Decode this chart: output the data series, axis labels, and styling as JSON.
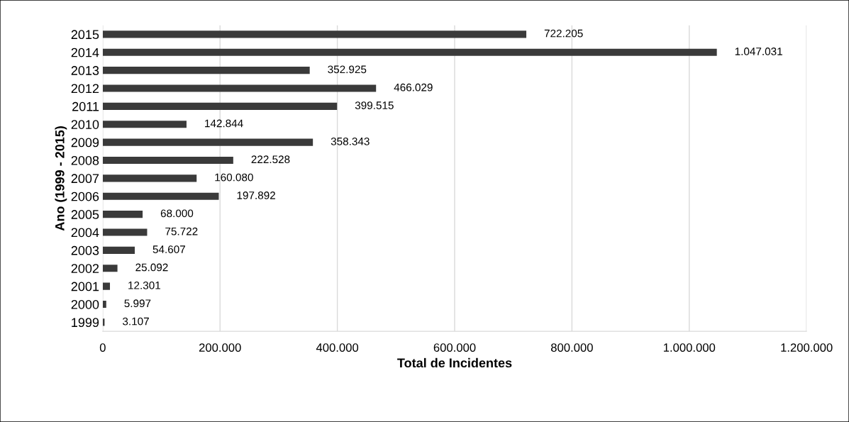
{
  "chart_data": {
    "type": "bar",
    "orientation": "horizontal",
    "xlabel": "Total de Incidentes",
    "ylabel": "Ano (1999 - 2015)",
    "categories": [
      "2015",
      "2014",
      "2013",
      "2012",
      "2011",
      "2010",
      "2009",
      "2008",
      "2007",
      "2006",
      "2005",
      "2004",
      "2003",
      "2002",
      "2001",
      "2000",
      "1999"
    ],
    "values": [
      722205,
      1047031,
      352925,
      466029,
      399515,
      142844,
      358343,
      222528,
      160080,
      197892,
      68000,
      75722,
      54607,
      25092,
      12301,
      5997,
      3107
    ],
    "value_labels": [
      "722.205",
      "1.047.031",
      "352.925",
      "466.029",
      "399.515",
      "142.844",
      "358.343",
      "222.528",
      "160.080",
      "197.892",
      "68.000",
      "75.722",
      "54.607",
      "25.092",
      "12.301",
      "5.997",
      "3.107"
    ],
    "color": "#3a3a3a",
    "xlim": [
      0,
      1200000
    ],
    "xticks": [
      0,
      {
        "value": 200000,
        "label": "200.000"
      },
      {
        "value": 400000,
        "label": "400.000"
      },
      {
        "value": 600000,
        "label": "600.000"
      },
      {
        "value": 800000,
        "label": "800.000"
      },
      {
        "value": 1000000,
        "label": "1.000.000"
      },
      {
        "value": 1200000,
        "label": "1.200.000"
      }
    ],
    "grid": "x",
    "legend": false
  }
}
